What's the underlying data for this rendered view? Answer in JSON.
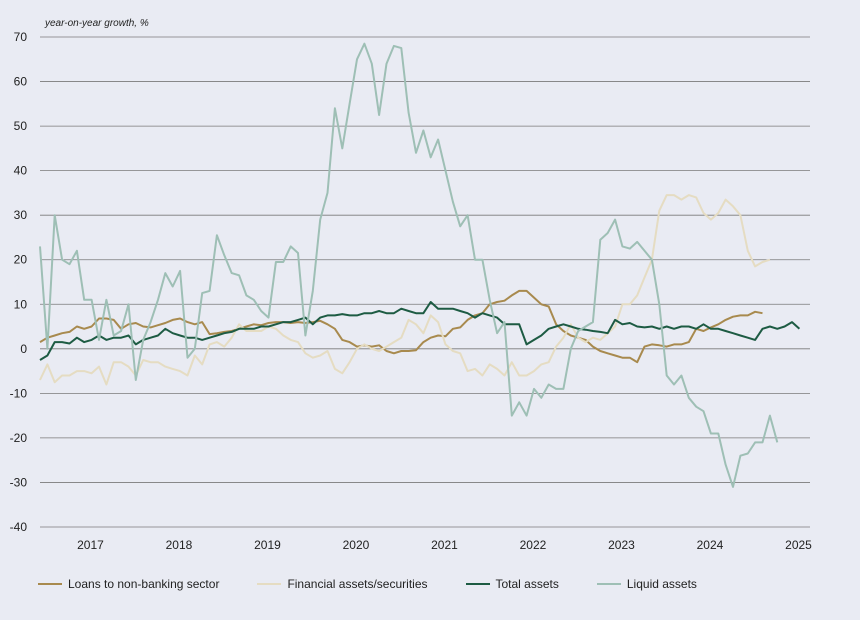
{
  "chart_data": {
    "type": "line",
    "ylabel": "year-on-year growth, %",
    "ylim": [
      -40,
      70
    ],
    "yticks": [
      70,
      60,
      50,
      40,
      30,
      20,
      10,
      0,
      -10,
      -20,
      -30,
      -40
    ],
    "xlim": [
      2016.5,
      2025.2
    ],
    "xticks": [
      "2017",
      "2018",
      "2019",
      "2020",
      "2021",
      "2022",
      "2023",
      "2024",
      "2025"
    ],
    "grid": true,
    "legend_position": "bottom",
    "series": [
      {
        "name": "Loans to non-banking sector",
        "color": "#a88a4e",
        "start": 2016.5,
        "step": 0.0833,
        "values": [
          1.5,
          2.5,
          3.0,
          3.5,
          3.8,
          5.0,
          4.5,
          5.0,
          6.8,
          6.8,
          6.5,
          4.5,
          5.5,
          5.8,
          5.0,
          4.8,
          5.3,
          5.8,
          6.5,
          6.8,
          6.0,
          5.5,
          6.0,
          3.3,
          3.5,
          3.8,
          4.0,
          4.5,
          5.0,
          5.5,
          5.3,
          5.8,
          6.0,
          6.0,
          5.8,
          6.0,
          5.8,
          6.0,
          6.3,
          5.5,
          4.5,
          2.0,
          1.5,
          0.5,
          0.8,
          0.5,
          0.8,
          -0.5,
          -1.0,
          -0.5,
          -0.5,
          -0.3,
          1.5,
          2.5,
          3.0,
          2.8,
          4.5,
          4.8,
          6.5,
          7.5,
          8.0,
          10.0,
          10.5,
          10.8,
          12.0,
          13.0,
          13.0,
          11.5,
          10.0,
          9.5,
          5.5,
          4.0,
          3.0,
          2.5,
          2.0,
          0.5,
          -0.5,
          -1.0,
          -1.5,
          -2.0,
          -2.0,
          -3.0,
          0.5,
          1.0,
          0.8,
          0.5,
          1.0,
          1.0,
          1.5,
          4.5,
          4.0,
          4.8,
          5.5,
          6.5,
          7.2,
          7.5,
          7.5,
          8.3,
          8.0
        ]
      },
      {
        "name": "Financial assets/securities",
        "color": "#e5dcc2",
        "start": 2016.5,
        "step": 0.0833,
        "values": [
          -7.0,
          -3.5,
          -7.5,
          -6.0,
          -6.0,
          -5.0,
          -5.0,
          -5.5,
          -4.0,
          -8.0,
          -3.0,
          -3.0,
          -4.0,
          -6.0,
          -2.5,
          -3.0,
          -3.0,
          -4.0,
          -4.5,
          -5.0,
          -6.0,
          -1.5,
          -3.5,
          1.0,
          1.5,
          0.5,
          2.5,
          5.5,
          4.0,
          4.0,
          4.0,
          5.0,
          4.5,
          3.0,
          2.0,
          1.5,
          -1.0,
          -2.0,
          -1.5,
          -0.5,
          -4.5,
          -5.5,
          -3.0,
          0.0,
          1.0,
          0.0,
          -0.5,
          0.5,
          1.5,
          2.5,
          6.5,
          5.5,
          3.5,
          7.5,
          6.0,
          1.0,
          -0.5,
          -1.0,
          -5.0,
          -4.5,
          -6.0,
          -3.5,
          -4.5,
          -6.0,
          -3.0,
          -6.0,
          -6.0,
          -5.0,
          -3.5,
          -3.0,
          0.5,
          2.5,
          5.5,
          2.5,
          1.5,
          2.5,
          2.0,
          3.5,
          5.0,
          10.0,
          10.0,
          12.0,
          16.0,
          20.0,
          31.0,
          34.5,
          34.5,
          33.5,
          34.5,
          34.0,
          30.5,
          29.0,
          30.5,
          33.5,
          32.0,
          30.0,
          22.0,
          18.5,
          19.5,
          20.0
        ]
      },
      {
        "name": "Total assets",
        "color": "#1d5b43",
        "start": 2016.5,
        "step": 0.0833,
        "values": [
          -2.5,
          -1.5,
          1.5,
          1.5,
          1.2,
          2.5,
          1.5,
          2.0,
          3.0,
          2.0,
          2.5,
          2.5,
          3.0,
          1.0,
          2.0,
          2.5,
          3.0,
          4.5,
          3.5,
          3.0,
          2.5,
          2.5,
          2.0,
          2.5,
          3.0,
          3.5,
          3.8,
          4.5,
          4.5,
          4.5,
          5.0,
          5.0,
          5.5,
          6.0,
          6.0,
          6.5,
          7.0,
          5.5,
          7.0,
          7.5,
          7.5,
          7.8,
          7.5,
          7.5,
          8.0,
          8.0,
          8.5,
          8.0,
          8.0,
          9.0,
          8.5,
          8.0,
          8.0,
          10.5,
          9.0,
          9.0,
          9.0,
          8.5,
          8.0,
          7.0,
          8.0,
          7.5,
          7.0,
          5.5,
          5.5,
          5.5,
          1.0,
          2.0,
          3.0,
          4.5,
          5.0,
          5.5,
          5.0,
          4.5,
          4.3,
          4.0,
          3.8,
          3.5,
          6.5,
          5.5,
          5.8,
          5.0,
          4.8,
          5.0,
          4.5,
          5.0,
          4.5,
          5.0,
          5.0,
          4.5,
          5.5,
          4.5,
          4.5,
          4.0,
          3.5,
          3.0,
          2.5,
          2.0,
          4.5,
          5.0,
          4.5,
          5.0,
          6.0,
          4.5
        ]
      },
      {
        "name": "Liquid assets",
        "color": "#9ebfb5",
        "start": 2016.5,
        "step": 0.0833,
        "values": [
          23,
          0,
          30,
          20,
          19,
          22,
          11,
          11,
          2,
          11,
          3,
          4,
          10,
          -7,
          2,
          6,
          11,
          17,
          14,
          17.5,
          -2,
          0,
          12.5,
          13,
          25.5,
          21,
          17,
          16.5,
          12,
          11,
          8.5,
          7,
          19.5,
          19.5,
          23,
          21.5,
          3,
          13,
          29,
          35,
          54,
          45,
          55,
          65,
          68.5,
          64,
          52.5,
          64,
          68,
          67.5,
          53,
          44,
          49,
          43,
          47,
          40,
          33,
          27.5,
          30,
          20,
          20,
          11,
          3.5,
          6,
          -15,
          -12,
          -15,
          -9,
          -11,
          -8,
          -9,
          -9,
          0,
          4,
          5,
          6,
          24.5,
          26,
          29,
          23,
          22.5,
          24,
          22,
          20,
          10,
          -6,
          -8,
          -6,
          -11,
          -13,
          -14,
          -19,
          -19,
          -26,
          -31,
          -24,
          -23.5,
          -21,
          -21,
          -15,
          -21
        ]
      }
    ]
  }
}
